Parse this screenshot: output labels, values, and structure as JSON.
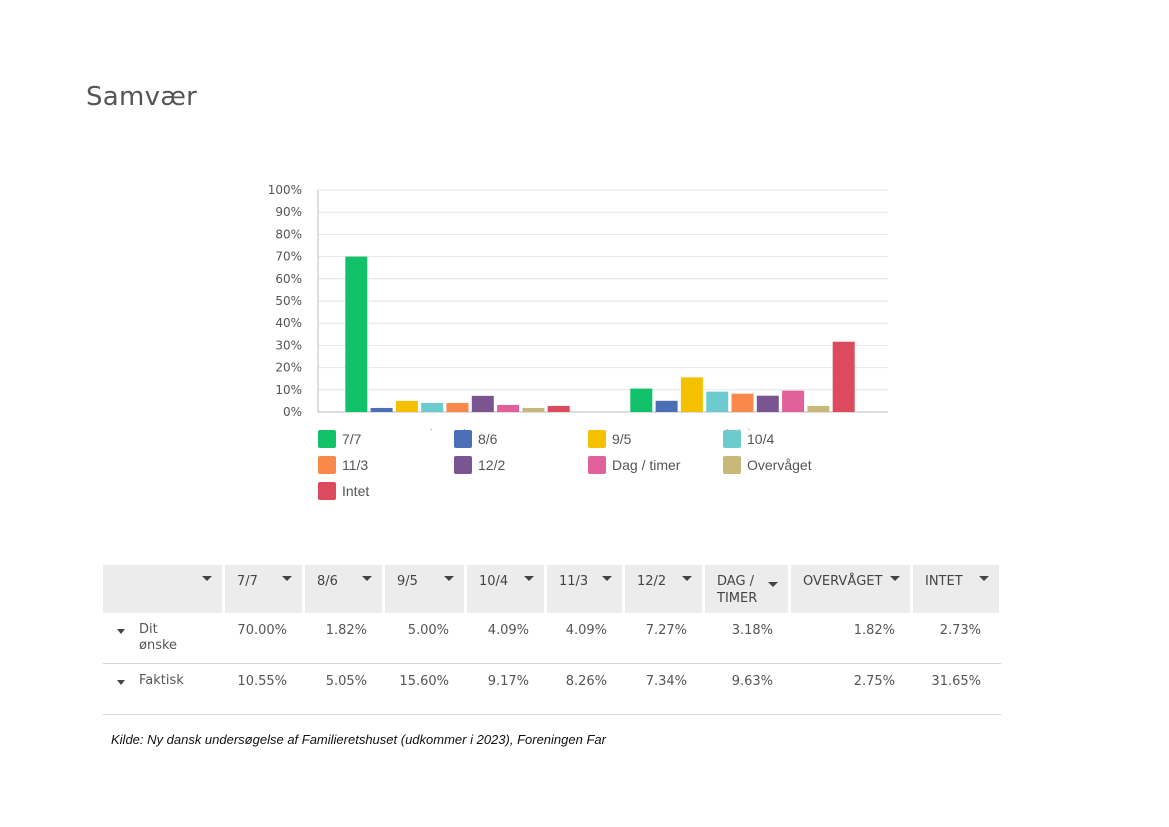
{
  "page": {
    "title": "Samvær"
  },
  "chart_data": {
    "type": "bar",
    "categories": [
      "Dit ønske",
      "Faktisk"
    ],
    "series": [
      {
        "name": "7/7",
        "color": "#12c26a",
        "values": [
          70.0,
          10.55
        ]
      },
      {
        "name": "8/6",
        "color": "#4a6fb5",
        "values": [
          1.82,
          5.05
        ]
      },
      {
        "name": "9/5",
        "color": "#f5c000",
        "values": [
          5.0,
          15.6
        ]
      },
      {
        "name": "10/4",
        "color": "#6dcbcf",
        "values": [
          4.09,
          9.17
        ]
      },
      {
        "name": "11/3",
        "color": "#f8894a",
        "values": [
          4.09,
          8.26
        ]
      },
      {
        "name": "12/2",
        "color": "#7b5592",
        "values": [
          7.27,
          7.34
        ]
      },
      {
        "name": "Dag / timer",
        "color": "#e0619a",
        "values": [
          3.18,
          9.63
        ]
      },
      {
        "name": "Overvåget",
        "color": "#c8b97a",
        "values": [
          1.82,
          2.75
        ]
      },
      {
        "name": "Intet",
        "color": "#dc4a5e",
        "values": [
          2.73,
          31.65
        ]
      }
    ],
    "ylim": [
      0,
      100
    ],
    "yticks": [
      "0%",
      "10%",
      "20%",
      "30%",
      "40%",
      "50%",
      "60%",
      "70%",
      "80%",
      "90%",
      "100%"
    ],
    "grid": true,
    "legend": "bottom"
  },
  "table": {
    "headers": [
      "7/7",
      "8/6",
      "9/5",
      "10/4",
      "11/3",
      "12/2",
      "DAG / TIMER",
      "OVERVÅGET",
      "INTET"
    ],
    "rows": [
      {
        "label": "Dit ønske",
        "values": [
          "70.00%",
          "1.82%",
          "5.00%",
          "4.09%",
          "4.09%",
          "7.27%",
          "3.18%",
          "1.82%",
          "2.73%"
        ]
      },
      {
        "label": "Faktisk",
        "values": [
          "10.55%",
          "5.05%",
          "15.60%",
          "9.17%",
          "8.26%",
          "7.34%",
          "9.63%",
          "2.75%",
          "31.65%"
        ]
      }
    ]
  },
  "source": "Kilde: Ny dansk undersøgelse af Familieretshuset (udkommer i 2023), Foreningen Far"
}
